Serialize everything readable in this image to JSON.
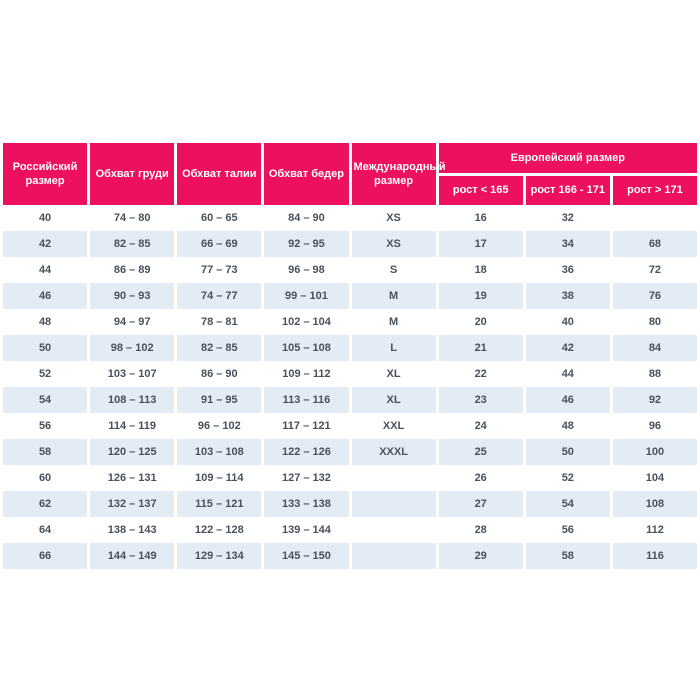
{
  "page": {
    "background": "#FFFFFF"
  },
  "chart_data": {
    "type": "table",
    "headers": {
      "russian_size": "Российский размер",
      "chest": "Обхват груди",
      "waist": "Обхват талии",
      "hips": "Обхват бедер",
      "international_size": "Международный размер",
      "european_size": "Европейский размер",
      "height_lt_165": "рост < 165",
      "height_166_171": "рост 166 - 171",
      "height_gt_171": "рост > 171"
    },
    "column_order": [
      "russian_size",
      "chest",
      "waist",
      "hips",
      "international_size",
      "height_lt_165",
      "height_166_171",
      "height_gt_171"
    ],
    "rows": [
      [
        "40",
        "74 – 80",
        "60 – 65",
        "84 – 90",
        "XS",
        "16",
        "32",
        ""
      ],
      [
        "42",
        "82 – 85",
        "66 – 69",
        "92 – 95",
        "XS",
        "17",
        "34",
        "68"
      ],
      [
        "44",
        "86 – 89",
        "77 – 73",
        "96 – 98",
        "S",
        "18",
        "36",
        "72"
      ],
      [
        "46",
        "90 – 93",
        "74 – 77",
        "99 – 101",
        "M",
        "19",
        "38",
        "76"
      ],
      [
        "48",
        "94 – 97",
        "78 – 81",
        "102 – 104",
        "M",
        "20",
        "40",
        "80"
      ],
      [
        "50",
        "98 – 102",
        "82 – 85",
        "105 – 108",
        "L",
        "21",
        "42",
        "84"
      ],
      [
        "52",
        "103 – 107",
        "86 – 90",
        "109 – 112",
        "XL",
        "22",
        "44",
        "88"
      ],
      [
        "54",
        "108 – 113",
        "91 – 95",
        "113 – 116",
        "XL",
        "23",
        "46",
        "92"
      ],
      [
        "56",
        "114 – 119",
        "96 – 102",
        "117 – 121",
        "XXL",
        "24",
        "48",
        "96"
      ],
      [
        "58",
        "120 – 125",
        "103 – 108",
        "122 – 126",
        "XXXL",
        "25",
        "50",
        "100"
      ],
      [
        "60",
        "126 – 131",
        "109 – 114",
        "127 – 132",
        "",
        "26",
        "52",
        "104"
      ],
      [
        "62",
        "132 – 137",
        "115 – 121",
        "133 – 138",
        "",
        "27",
        "54",
        "108"
      ],
      [
        "64",
        "138 – 143",
        "122 – 128",
        "139 – 144",
        "",
        "28",
        "56",
        "112"
      ],
      [
        "66",
        "144 – 149",
        "129 – 134",
        "145 – 150",
        "",
        "29",
        "58",
        "116"
      ]
    ],
    "colors": {
      "header_bg": "#ED105F",
      "header_text": "#FFFFFF",
      "row_bg": "#FFFFFF",
      "row_alt_bg": "#E3EBF5",
      "body_text": "#47525D"
    },
    "layout_hints": {
      "columns": 8,
      "body_rows": 14,
      "grid": "off",
      "striped": true
    }
  }
}
